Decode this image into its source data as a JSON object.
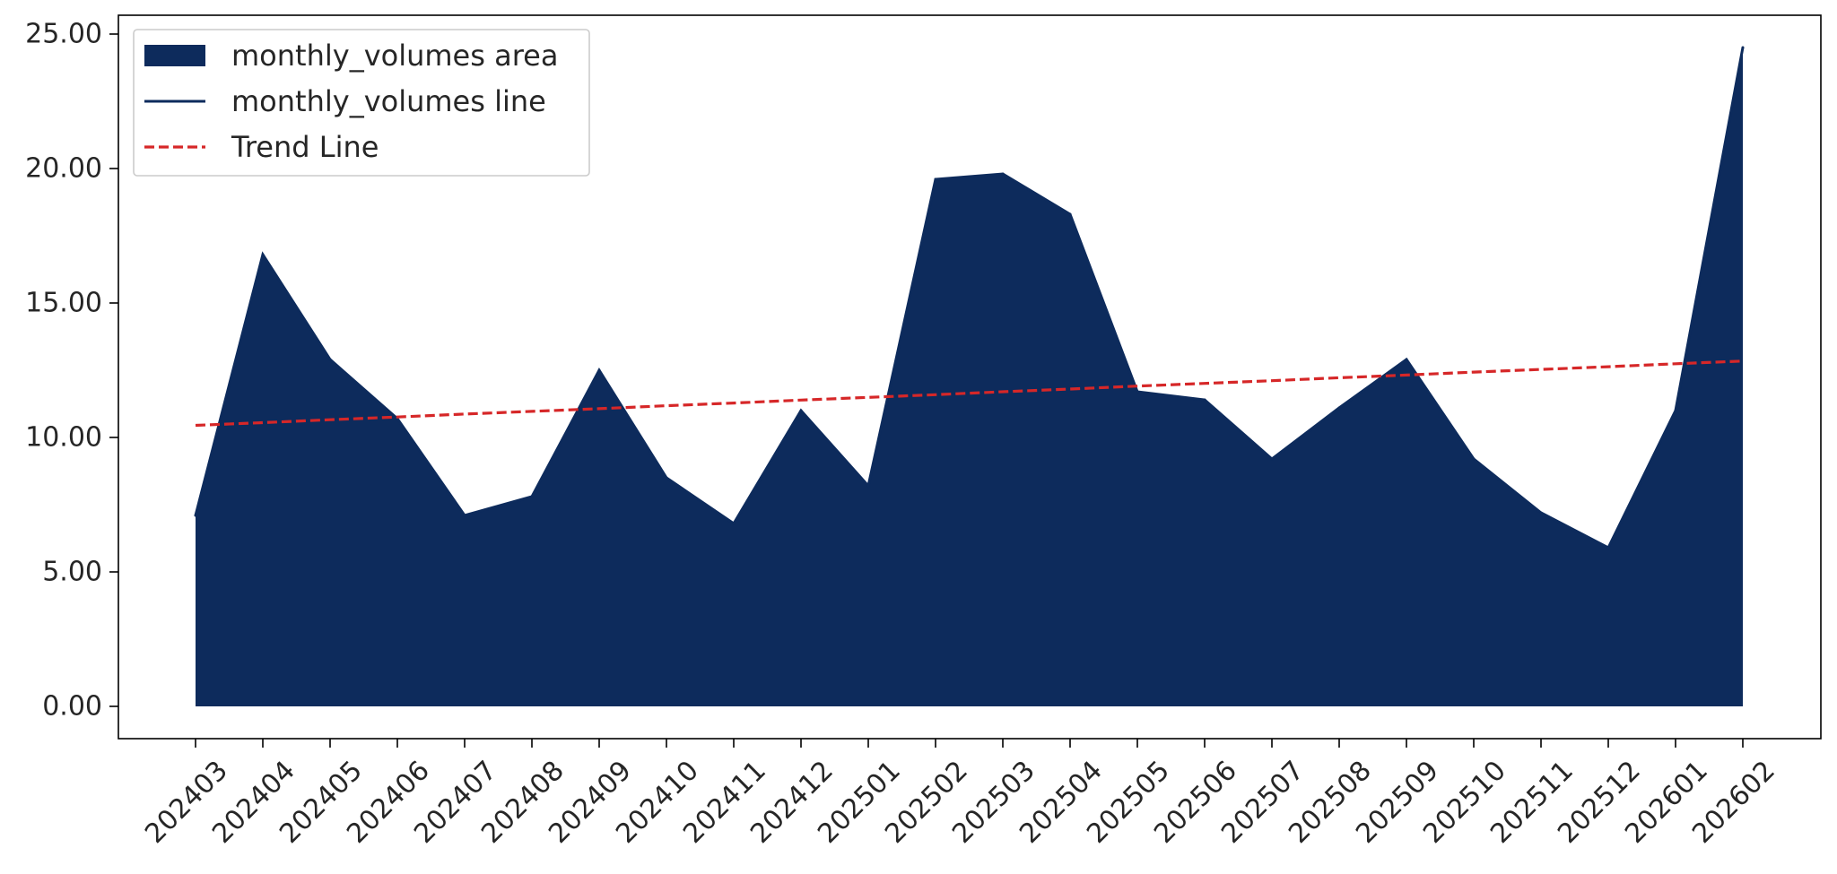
{
  "chart_data": {
    "type": "area",
    "title": "",
    "xlabel": "",
    "ylabel": "",
    "categories": [
      "202403",
      "202404",
      "202405",
      "202406",
      "202407",
      "202408",
      "202409",
      "202410",
      "202411",
      "202412",
      "202501",
      "202502",
      "202503",
      "202504",
      "202505",
      "202506",
      "202507",
      "202508",
      "202509",
      "202510",
      "202511",
      "202512",
      "202601",
      "202602"
    ],
    "series": [
      {
        "name": "monthly_volumes area",
        "kind": "area",
        "color": "#0d2b5c",
        "values": [
          7.1,
          16.8,
          12.9,
          10.7,
          7.1,
          7.8,
          12.5,
          8.5,
          6.8,
          11.0,
          8.2,
          19.6,
          19.8,
          18.3,
          11.7,
          11.4,
          9.2,
          11.1,
          12.9,
          9.2,
          7.2,
          5.9,
          11.0,
          24.5
        ]
      },
      {
        "name": "monthly_volumes line",
        "kind": "line",
        "color": "#0d2b5c",
        "values": [
          7.1,
          16.8,
          12.9,
          10.7,
          7.1,
          7.8,
          12.5,
          8.5,
          6.8,
          11.0,
          8.2,
          19.6,
          19.8,
          18.3,
          11.7,
          11.4,
          9.2,
          11.1,
          12.9,
          9.2,
          7.2,
          5.9,
          11.0,
          24.5
        ]
      },
      {
        "name": "Trend Line",
        "kind": "dashed-line",
        "color": "#d62728",
        "values": [
          10.45,
          10.55,
          10.66,
          10.76,
          10.87,
          10.97,
          11.07,
          11.18,
          11.28,
          11.39,
          11.49,
          11.59,
          11.7,
          11.8,
          11.91,
          12.01,
          12.11,
          12.22,
          12.32,
          12.43,
          12.53,
          12.63,
          12.74,
          12.84
        ]
      }
    ],
    "ylim": [
      -1.2,
      25.7
    ],
    "yticks": [
      "0.00",
      "5.00",
      "10.00",
      "15.00",
      "20.00",
      "25.00"
    ],
    "ytick_values": [
      0,
      5,
      10,
      15,
      20,
      25
    ],
    "grid": false,
    "legend_position": "top-left"
  }
}
